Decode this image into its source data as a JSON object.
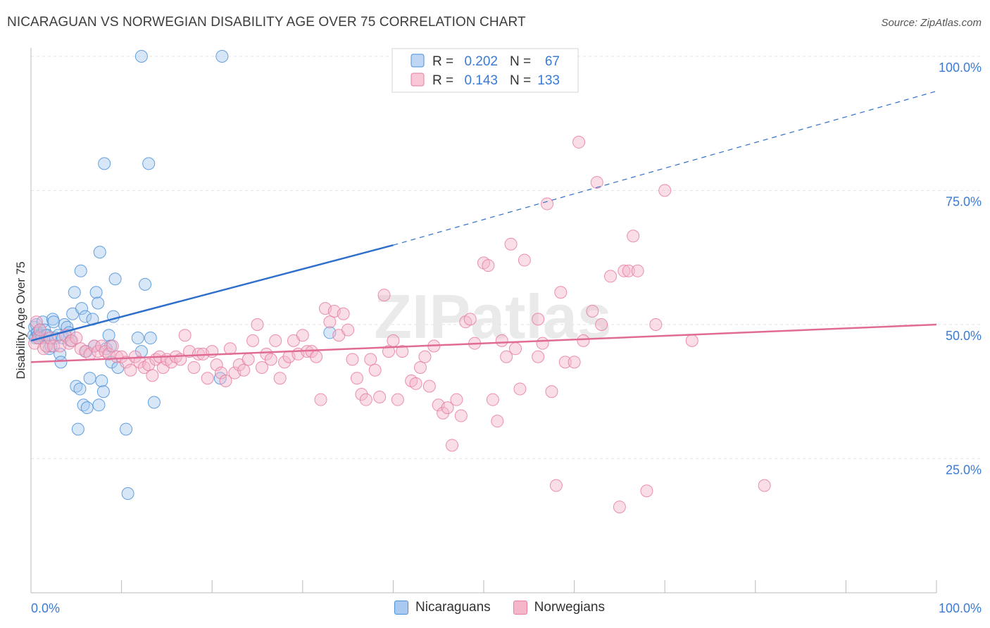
{
  "title": "NICARAGUAN VS NORWEGIAN DISABILITY AGE OVER 75 CORRELATION CHART",
  "source": "Source: ZipAtlas.com",
  "watermark": "ZIPatlas",
  "colors": {
    "blue": "#4a90d9",
    "blue_fill": "#a9c9f0",
    "blue_line": "#2f6fcc",
    "pink": "#e87da0",
    "pink_fill": "#f5b6ca",
    "pink_line": "#e06b95",
    "axis_label": "#3a7bd5",
    "grid": "#e3e3e3"
  },
  "chart_data": {
    "type": "scatter",
    "xlabel": "",
    "ylabel": "Disability Age Over 75",
    "xlim": [
      0,
      100
    ],
    "ylim": [
      0,
      100
    ],
    "x_tick_labels": {
      "left": "0.0%",
      "right": "100.0%"
    },
    "y_ticks": [
      {
        "value": 25,
        "label": "25.0%"
      },
      {
        "value": 50,
        "label": "50.0%"
      },
      {
        "value": 75,
        "label": "75.0%"
      },
      {
        "value": 100,
        "label": "100.0%"
      }
    ],
    "legend_top": [
      {
        "r_label": "R =",
        "r_value": "0.202",
        "n_label": "N =",
        "n_value": "67"
      },
      {
        "r_label": "R =",
        "r_value": "0.143",
        "n_label": "N =",
        "n_value": "133"
      }
    ],
    "series": [
      {
        "name": "Nicaraguans",
        "color": "blue",
        "trend": {
          "x0": 0,
          "y0": 47,
          "x1": 40,
          "y1": 64.8,
          "dash_x1": 100,
          "dash_y1": 93.5
        },
        "points": [
          [
            0.3,
            48
          ],
          [
            0.4,
            49.5
          ],
          [
            0.5,
            47.5
          ],
          [
            0.6,
            50
          ],
          [
            0.7,
            48.5
          ],
          [
            0.8,
            48
          ],
          [
            0.9,
            47.5
          ],
          [
            1,
            49
          ],
          [
            1.1,
            48
          ],
          [
            1.2,
            47.5
          ],
          [
            1.3,
            50.5
          ],
          [
            1.5,
            49
          ],
          [
            1.6,
            48
          ],
          [
            1.8,
            48
          ],
          [
            2,
            45.5
          ],
          [
            2.2,
            46
          ],
          [
            2.4,
            51
          ],
          [
            2.5,
            50.5
          ],
          [
            2.7,
            47.5
          ],
          [
            3,
            48
          ],
          [
            3.2,
            44.5
          ],
          [
            3.3,
            43
          ],
          [
            3.5,
            47.5
          ],
          [
            3.7,
            50
          ],
          [
            4,
            49.5
          ],
          [
            4.2,
            48.5
          ],
          [
            4.4,
            47
          ],
          [
            4.6,
            52
          ],
          [
            4.8,
            56
          ],
          [
            5,
            38.5
          ],
          [
            5.2,
            30.5
          ],
          [
            5.4,
            38
          ],
          [
            5.5,
            60
          ],
          [
            5.6,
            53
          ],
          [
            5.8,
            35
          ],
          [
            6,
            51.5
          ],
          [
            6.1,
            45
          ],
          [
            6.2,
            34.5
          ],
          [
            6.5,
            40
          ],
          [
            6.8,
            51
          ],
          [
            7,
            46
          ],
          [
            7.2,
            56
          ],
          [
            7.4,
            54
          ],
          [
            7.5,
            35
          ],
          [
            7.6,
            63.5
          ],
          [
            7.8,
            39.5
          ],
          [
            8,
            37.5
          ],
          [
            8.1,
            80
          ],
          [
            8.3,
            45.5
          ],
          [
            8.6,
            48
          ],
          [
            8.8,
            46
          ],
          [
            8.9,
            43
          ],
          [
            9.1,
            51.5
          ],
          [
            9.3,
            58.5
          ],
          [
            9.6,
            42
          ],
          [
            10.5,
            30.5
          ],
          [
            10.7,
            18.5
          ],
          [
            11.8,
            47.5
          ],
          [
            12.2,
            45
          ],
          [
            12.6,
            57.5
          ],
          [
            13,
            80
          ],
          [
            13.2,
            47.5
          ],
          [
            13.6,
            35.5
          ],
          [
            12.2,
            100
          ],
          [
            21.1,
            100
          ],
          [
            20.9,
            40
          ],
          [
            33,
            48.5
          ]
        ]
      },
      {
        "name": "Norwegians",
        "color": "pink",
        "trend": {
          "x0": 0,
          "y0": 43,
          "x1": 100,
          "y1": 50
        },
        "points": [
          [
            0.4,
            46.5
          ],
          [
            0.6,
            50.5
          ],
          [
            0.8,
            47.5
          ],
          [
            1,
            49
          ],
          [
            1.4,
            45.5
          ],
          [
            1.7,
            46
          ],
          [
            2.1,
            47.5
          ],
          [
            2.5,
            46
          ],
          [
            3.2,
            46
          ],
          [
            3.8,
            48
          ],
          [
            4.2,
            46.5
          ],
          [
            4.5,
            47
          ],
          [
            5,
            47.5
          ],
          [
            5.5,
            45.5
          ],
          [
            6,
            45
          ],
          [
            6.5,
            44.5
          ],
          [
            7,
            46
          ],
          [
            7.4,
            45
          ],
          [
            7.8,
            46
          ],
          [
            8.2,
            45
          ],
          [
            8.6,
            44.5
          ],
          [
            9,
            46
          ],
          [
            9.5,
            44
          ],
          [
            10,
            44
          ],
          [
            10.5,
            43
          ],
          [
            11,
            41.5
          ],
          [
            11.5,
            44
          ],
          [
            12,
            43
          ],
          [
            12.5,
            42
          ],
          [
            13,
            42.5
          ],
          [
            13.4,
            40.5
          ],
          [
            13.8,
            43.5
          ],
          [
            14.2,
            44
          ],
          [
            14.6,
            42
          ],
          [
            15,
            43.5
          ],
          [
            15.5,
            43
          ],
          [
            16,
            44
          ],
          [
            16.5,
            43.5
          ],
          [
            17,
            48
          ],
          [
            17.5,
            45
          ],
          [
            18,
            42
          ],
          [
            18.5,
            44.5
          ],
          [
            19,
            44.5
          ],
          [
            19.5,
            40
          ],
          [
            20,
            45
          ],
          [
            20.5,
            42.5
          ],
          [
            21,
            41
          ],
          [
            21.5,
            39.5
          ],
          [
            22,
            45.5
          ],
          [
            22.5,
            41
          ],
          [
            23,
            42.5
          ],
          [
            23.5,
            41.5
          ],
          [
            24,
            43.5
          ],
          [
            24.5,
            47
          ],
          [
            25,
            50
          ],
          [
            25.5,
            42
          ],
          [
            26,
            44.5
          ],
          [
            26.5,
            43.5
          ],
          [
            27,
            47
          ],
          [
            27.5,
            40
          ],
          [
            28,
            43
          ],
          [
            28.5,
            44
          ],
          [
            29,
            47
          ],
          [
            29.5,
            44.5
          ],
          [
            30,
            48
          ],
          [
            30.5,
            45
          ],
          [
            31,
            45
          ],
          [
            31.5,
            44
          ],
          [
            32,
            36
          ],
          [
            32.5,
            53
          ],
          [
            33,
            50.5
          ],
          [
            33.5,
            52.5
          ],
          [
            34,
            48
          ],
          [
            34.5,
            52
          ],
          [
            35,
            49
          ],
          [
            35.5,
            43.5
          ],
          [
            36,
            40
          ],
          [
            36.5,
            37
          ],
          [
            37,
            36
          ],
          [
            37.5,
            43.5
          ],
          [
            38,
            41.5
          ],
          [
            38.5,
            36.5
          ],
          [
            39,
            55.5
          ],
          [
            39.5,
            45
          ],
          [
            40,
            47
          ],
          [
            40.5,
            36
          ],
          [
            41,
            45
          ],
          [
            42,
            39.5
          ],
          [
            42.5,
            39
          ],
          [
            43,
            42
          ],
          [
            43.5,
            44
          ],
          [
            44,
            38.5
          ],
          [
            44.5,
            46
          ],
          [
            45,
            35
          ],
          [
            45.5,
            33.5
          ],
          [
            46,
            34.5
          ],
          [
            46.5,
            27.5
          ],
          [
            47,
            36
          ],
          [
            47.5,
            33
          ],
          [
            48,
            50.5
          ],
          [
            48.5,
            51
          ],
          [
            49,
            46.5
          ],
          [
            50,
            61.5
          ],
          [
            50.5,
            61
          ],
          [
            51,
            36
          ],
          [
            51.5,
            32
          ],
          [
            52,
            47
          ],
          [
            52.5,
            44
          ],
          [
            53,
            65
          ],
          [
            53.5,
            45.5
          ],
          [
            54,
            38
          ],
          [
            54.5,
            62
          ],
          [
            56,
            51
          ],
          [
            56.5,
            46.5
          ],
          [
            57,
            72.5
          ],
          [
            57.5,
            37.5
          ],
          [
            58,
            20
          ],
          [
            58.5,
            56
          ],
          [
            59,
            43
          ],
          [
            60,
            43
          ],
          [
            60.5,
            84
          ],
          [
            61,
            47
          ],
          [
            62,
            52.5
          ],
          [
            62.5,
            76.5
          ],
          [
            63,
            50
          ],
          [
            64,
            59
          ],
          [
            65,
            16
          ],
          [
            65.5,
            60
          ],
          [
            66,
            60
          ],
          [
            66.5,
            66.5
          ],
          [
            67,
            60
          ],
          [
            68,
            19
          ],
          [
            69,
            50
          ],
          [
            70,
            75
          ],
          [
            73,
            47
          ],
          [
            81,
            20
          ],
          [
            56,
            44
          ]
        ]
      }
    ]
  },
  "legend_bottom": [
    {
      "label": "Nicaraguans",
      "color": "blue"
    },
    {
      "label": "Norwegians",
      "color": "pink"
    }
  ]
}
